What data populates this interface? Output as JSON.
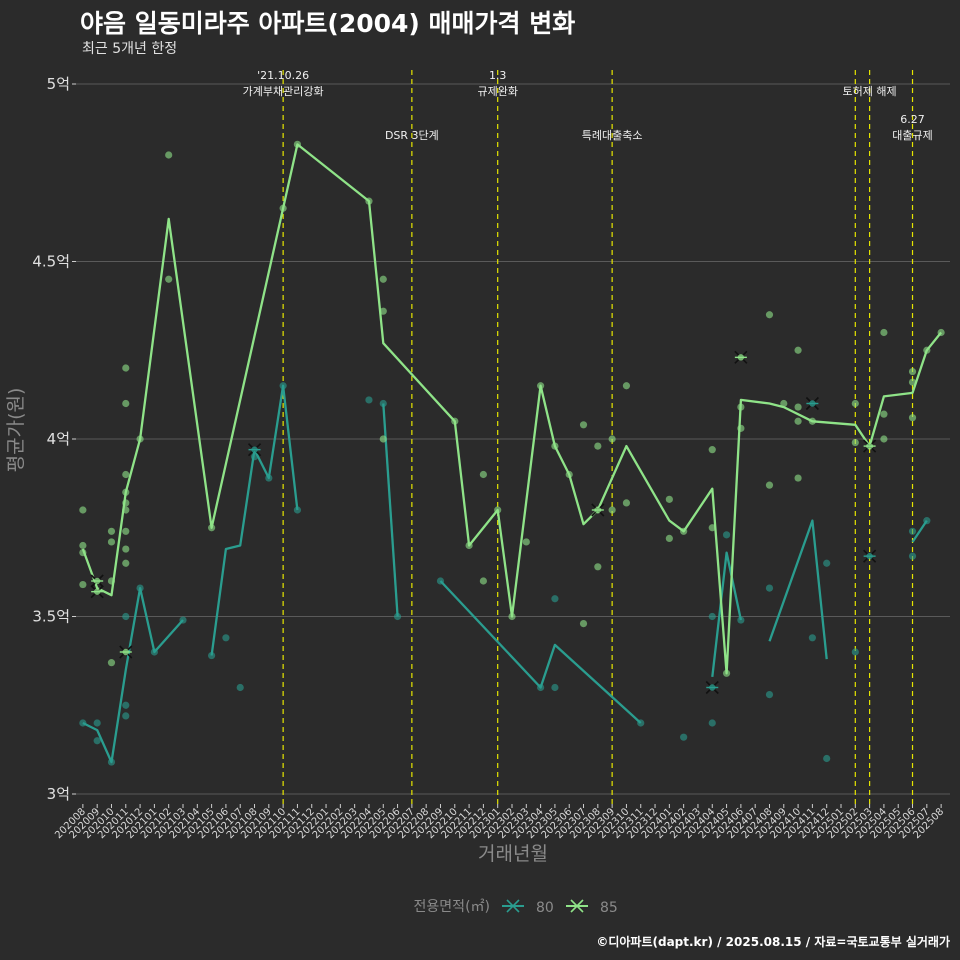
{
  "chart_data": {
    "type": "line",
    "title": "야음 일동미라주 아파트(2004) 매매가격 변화",
    "subtitle": "최근 5개년 한정",
    "xlabel": "거래년월",
    "ylabel": "평균가(원)",
    "caption": "©디아파트(dapt.kr) / 2025.08.15 / 자료=국토교통부 실거래가",
    "legend_title": "전용면적(㎡)",
    "legend_position": "bottom",
    "grid": true,
    "ylim": [
      3.0,
      5.0
    ],
    "y_ticks": [
      {
        "value": 3.0,
        "label": "3억"
      },
      {
        "value": 3.5,
        "label": "3.5억"
      },
      {
        "value": 4.0,
        "label": "4억"
      },
      {
        "value": 4.5,
        "label": "4.5억"
      },
      {
        "value": 5.0,
        "label": "5억"
      }
    ],
    "categories": [
      "202008",
      "202009",
      "202010",
      "202011",
      "202012",
      "202101",
      "202102",
      "202103",
      "202104",
      "202105",
      "202106",
      "202107",
      "202108",
      "202109",
      "202110",
      "202111",
      "202112",
      "202201",
      "202202",
      "202203",
      "202204",
      "202205",
      "202206",
      "202207",
      "202208",
      "202209",
      "202210",
      "202211",
      "202212",
      "202301",
      "202302",
      "202303",
      "202304",
      "202305",
      "202306",
      "202307",
      "202308",
      "202309",
      "202310",
      "202311",
      "202312",
      "202401",
      "202402",
      "202403",
      "202404",
      "202405",
      "202406",
      "202407",
      "202408",
      "202409",
      "202410",
      "202411",
      "202412",
      "202501",
      "202502",
      "202503",
      "202504",
      "202505",
      "202506",
      "202507",
      "202508"
    ],
    "events": [
      {
        "x": "202110",
        "label_lines": [
          "'21.10.26",
          "가계부채관리강화"
        ],
        "level": 1
      },
      {
        "x": "202207",
        "label_lines": [
          "DSR 3단계"
        ],
        "level": 2
      },
      {
        "x": "202301",
        "label_lines": [
          "1.3",
          "규제완화"
        ],
        "level": 1
      },
      {
        "x": "202309",
        "label_lines": [
          "특례대출축소"
        ],
        "level": 2
      },
      {
        "x": "202502",
        "label_lines": [],
        "level": 1
      },
      {
        "x": "202503",
        "label_lines": [
          "토허제 해제"
        ],
        "level": 1
      },
      {
        "x": "202506",
        "label_lines": [
          "6.27",
          "대출규제"
        ],
        "level": 2
      }
    ],
    "series": [
      {
        "name": "80",
        "color": "#2a9d8f",
        "line": [
          {
            "segments": [
              [
                "202008",
                3.2
              ],
              [
                "202009",
                3.18
              ],
              [
                "202010",
                3.09
              ],
              [
                "202011",
                3.35
              ],
              [
                "202012",
                3.58
              ],
              [
                "202101",
                3.4
              ],
              [
                "202103",
                3.49
              ]
            ]
          },
          {
            "segments": [
              [
                "202105",
                3.39
              ],
              [
                "202106",
                3.69
              ],
              [
                "202107",
                3.7
              ],
              [
                "202108",
                3.97
              ],
              [
                "202109",
                3.89
              ],
              [
                "202110",
                4.15
              ],
              [
                "202111",
                3.8
              ]
            ]
          },
          {
            "segments": [
              [
                "202205",
                4.1
              ],
              [
                "202206",
                3.5
              ]
            ]
          },
          {
            "segments": [
              [
                "202209",
                3.6
              ],
              [
                "202304",
                3.3
              ],
              [
                "202305",
                3.42
              ],
              [
                "202311",
                3.2
              ]
            ]
          },
          {
            "segments": [
              [
                "202404",
                3.33
              ],
              [
                "202405",
                3.68
              ],
              [
                "202406",
                3.49
              ]
            ]
          },
          {
            "segments": [
              [
                "202408",
                3.43
              ],
              [
                "202411",
                3.77
              ],
              [
                "202412",
                3.38
              ]
            ]
          },
          {
            "segments": [
              [
                "202506",
                3.71
              ],
              [
                "202507",
                3.77
              ]
            ]
          }
        ],
        "points": [
          [
            "202008",
            3.2
          ],
          [
            "202009",
            3.2
          ],
          [
            "202009",
            3.15
          ],
          [
            "202010",
            3.09
          ],
          [
            "202011",
            3.5
          ],
          [
            "202011",
            3.25
          ],
          [
            "202011",
            3.22
          ],
          [
            "202012",
            3.58
          ],
          [
            "202101",
            3.4
          ],
          [
            "202103",
            3.49
          ],
          [
            "202105",
            3.39
          ],
          [
            "202106",
            3.44
          ],
          [
            "202107",
            3.3
          ],
          [
            "202108",
            3.95
          ],
          [
            "202109",
            3.89
          ],
          [
            "202110",
            4.15
          ],
          [
            "202111",
            3.8
          ],
          [
            "202204",
            4.11
          ],
          [
            "202205",
            4.1
          ],
          [
            "202206",
            3.5
          ],
          [
            "202209",
            3.6
          ],
          [
            "202304",
            3.3
          ],
          [
            "202305",
            3.55
          ],
          [
            "202305",
            3.3
          ],
          [
            "202311",
            3.2
          ],
          [
            "202402",
            3.16
          ],
          [
            "202404",
            3.5
          ],
          [
            "202404",
            3.2
          ],
          [
            "202405",
            3.73
          ],
          [
            "202406",
            3.49
          ],
          [
            "202408",
            3.58
          ],
          [
            "202408",
            3.28
          ],
          [
            "202411",
            3.44
          ],
          [
            "202412",
            3.65
          ],
          [
            "202412",
            3.1
          ],
          [
            "202502",
            3.4
          ],
          [
            "202506",
            3.74
          ],
          [
            "202506",
            3.67
          ],
          [
            "202507",
            3.77
          ]
        ],
        "cross_points": [
          [
            "202108",
            3.97
          ],
          [
            "202404",
            3.3
          ],
          [
            "202411",
            4.1
          ],
          [
            "202503",
            3.67
          ]
        ]
      },
      {
        "name": "85",
        "color": "#8fe388",
        "line": [
          {
            "segments": [
              [
                "202008",
                3.69
              ],
              [
                "202009",
                3.58
              ],
              [
                "202010",
                3.56
              ],
              [
                "202011",
                3.85
              ],
              [
                "202012",
                4.0
              ],
              [
                "202102",
                4.62
              ],
              [
                "202105",
                3.75
              ],
              [
                "202110",
                4.65
              ],
              [
                "202111",
                4.83
              ],
              [
                "202204",
                4.67
              ],
              [
                "202205",
                4.27
              ],
              [
                "202210",
                4.05
              ],
              [
                "202211",
                3.7
              ],
              [
                "202301",
                3.8
              ],
              [
                "202302",
                3.5
              ],
              [
                "202304",
                4.15
              ],
              [
                "202305",
                3.98
              ],
              [
                "202306",
                3.9
              ],
              [
                "202307",
                3.76
              ],
              [
                "202308",
                3.8
              ],
              [
                "202310",
                3.98
              ],
              [
                "202401",
                3.77
              ],
              [
                "202402",
                3.74
              ],
              [
                "202404",
                3.86
              ],
              [
                "202405",
                3.34
              ],
              [
                "202406",
                4.11
              ],
              [
                "202408",
                4.1
              ],
              [
                "202409",
                4.09
              ],
              [
                "202411",
                4.05
              ],
              [
                "202502",
                4.04
              ],
              [
                "202503",
                3.98
              ],
              [
                "202504",
                4.12
              ],
              [
                "202506",
                4.13
              ],
              [
                "202507",
                4.25
              ],
              [
                "202508",
                4.3
              ]
            ]
          }
        ],
        "points": [
          [
            "202008",
            3.8
          ],
          [
            "202008",
            3.7
          ],
          [
            "202008",
            3.68
          ],
          [
            "202008",
            3.59
          ],
          [
            "202010",
            3.74
          ],
          [
            "202010",
            3.71
          ],
          [
            "202010",
            3.6
          ],
          [
            "202010",
            3.37
          ],
          [
            "202011",
            4.2
          ],
          [
            "202011",
            4.1
          ],
          [
            "202011",
            3.9
          ],
          [
            "202011",
            3.85
          ],
          [
            "202011",
            3.82
          ],
          [
            "202011",
            3.8
          ],
          [
            "202011",
            3.74
          ],
          [
            "202011",
            3.69
          ],
          [
            "202011",
            3.65
          ],
          [
            "202012",
            4.0
          ],
          [
            "202102",
            4.8
          ],
          [
            "202102",
            4.45
          ],
          [
            "202105",
            3.75
          ],
          [
            "202110",
            4.65
          ],
          [
            "202111",
            4.83
          ],
          [
            "202204",
            4.67
          ],
          [
            "202205",
            4.45
          ],
          [
            "202205",
            4.36
          ],
          [
            "202205",
            4.0
          ],
          [
            "202210",
            4.05
          ],
          [
            "202211",
            3.7
          ],
          [
            "202212",
            3.9
          ],
          [
            "202212",
            3.6
          ],
          [
            "202301",
            3.8
          ],
          [
            "202302",
            3.5
          ],
          [
            "202303",
            3.71
          ],
          [
            "202304",
            4.15
          ],
          [
            "202305",
            3.98
          ],
          [
            "202306",
            3.9
          ],
          [
            "202307",
            4.04
          ],
          [
            "202307",
            3.48
          ],
          [
            "202308",
            3.98
          ],
          [
            "202308",
            3.8
          ],
          [
            "202308",
            3.64
          ],
          [
            "202309",
            4.0
          ],
          [
            "202309",
            3.8
          ],
          [
            "202310",
            4.15
          ],
          [
            "202310",
            3.82
          ],
          [
            "202401",
            3.83
          ],
          [
            "202401",
            3.72
          ],
          [
            "202402",
            3.74
          ],
          [
            "202404",
            3.97
          ],
          [
            "202404",
            3.75
          ],
          [
            "202405",
            3.34
          ],
          [
            "202406",
            4.09
          ],
          [
            "202406",
            4.03
          ],
          [
            "202408",
            4.35
          ],
          [
            "202408",
            3.87
          ],
          [
            "202409",
            4.1
          ],
          [
            "202410",
            4.25
          ],
          [
            "202410",
            4.09
          ],
          [
            "202410",
            4.05
          ],
          [
            "202410",
            3.89
          ],
          [
            "202411",
            4.05
          ],
          [
            "202502",
            4.1
          ],
          [
            "202502",
            3.99
          ],
          [
            "202503",
            3.98
          ],
          [
            "202504",
            4.3
          ],
          [
            "202504",
            4.07
          ],
          [
            "202504",
            4.0
          ],
          [
            "202506",
            4.19
          ],
          [
            "202506",
            4.16
          ],
          [
            "202506",
            4.06
          ],
          [
            "202507",
            4.25
          ],
          [
            "202508",
            4.3
          ]
        ],
        "cross_points": [
          [
            "202009",
            3.6
          ],
          [
            "202009",
            3.57
          ],
          [
            "202011",
            3.4
          ],
          [
            "202308",
            3.8
          ],
          [
            "202406",
            4.23
          ],
          [
            "202503",
            3.98
          ]
        ]
      }
    ]
  }
}
